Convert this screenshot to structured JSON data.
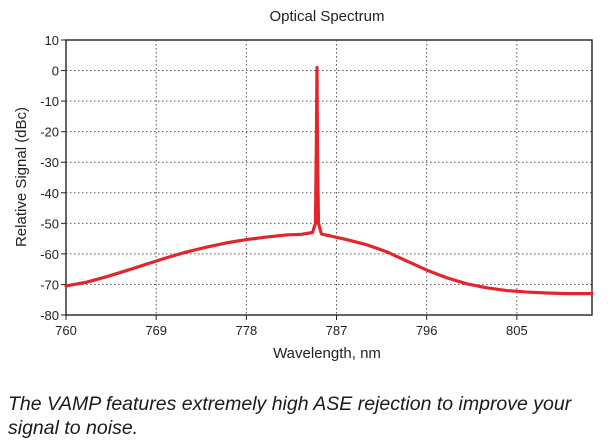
{
  "chart_data": {
    "type": "line",
    "title": "Optical Spectrum",
    "xlabel": "Wavelength, nm",
    "ylabel": "Relative Signal (dBc)",
    "xlim": [
      760,
      812.5
    ],
    "ylim": [
      -80,
      10
    ],
    "xticks": [
      760,
      769,
      778,
      787,
      796,
      805
    ],
    "yticks": [
      10,
      0,
      -10,
      -20,
      -30,
      -40,
      -50,
      -60,
      -70,
      -80
    ],
    "grid": true,
    "series": [
      {
        "name": "Optical Spectrum",
        "color": "#e3262b",
        "x": [
          760,
          762,
          764,
          766,
          768,
          770,
          772,
          774,
          776,
          778,
          780,
          782,
          783.5,
          784.6,
          784.9,
          785.0,
          785.05,
          785.1,
          785.2,
          785.5,
          786.5,
          788,
          790,
          792,
          794,
          796,
          798,
          800,
          802,
          804,
          806,
          808,
          810,
          812.5
        ],
        "y": [
          -70.5,
          -69.3,
          -67.5,
          -65.5,
          -63.4,
          -61.3,
          -59.4,
          -57.8,
          -56.4,
          -55.3,
          -54.5,
          -53.8,
          -53.6,
          -53.0,
          -50.0,
          -20.0,
          1.0,
          -25.0,
          -50.0,
          -53.5,
          -54.2,
          -55.3,
          -57.0,
          -59.3,
          -62.3,
          -65.3,
          -67.8,
          -69.8,
          -71.1,
          -72.0,
          -72.5,
          -72.8,
          -73.0,
          -73.0
        ]
      }
    ]
  },
  "caption": "The VAMP features extremely high ASE rejection to improve your signal to noise."
}
